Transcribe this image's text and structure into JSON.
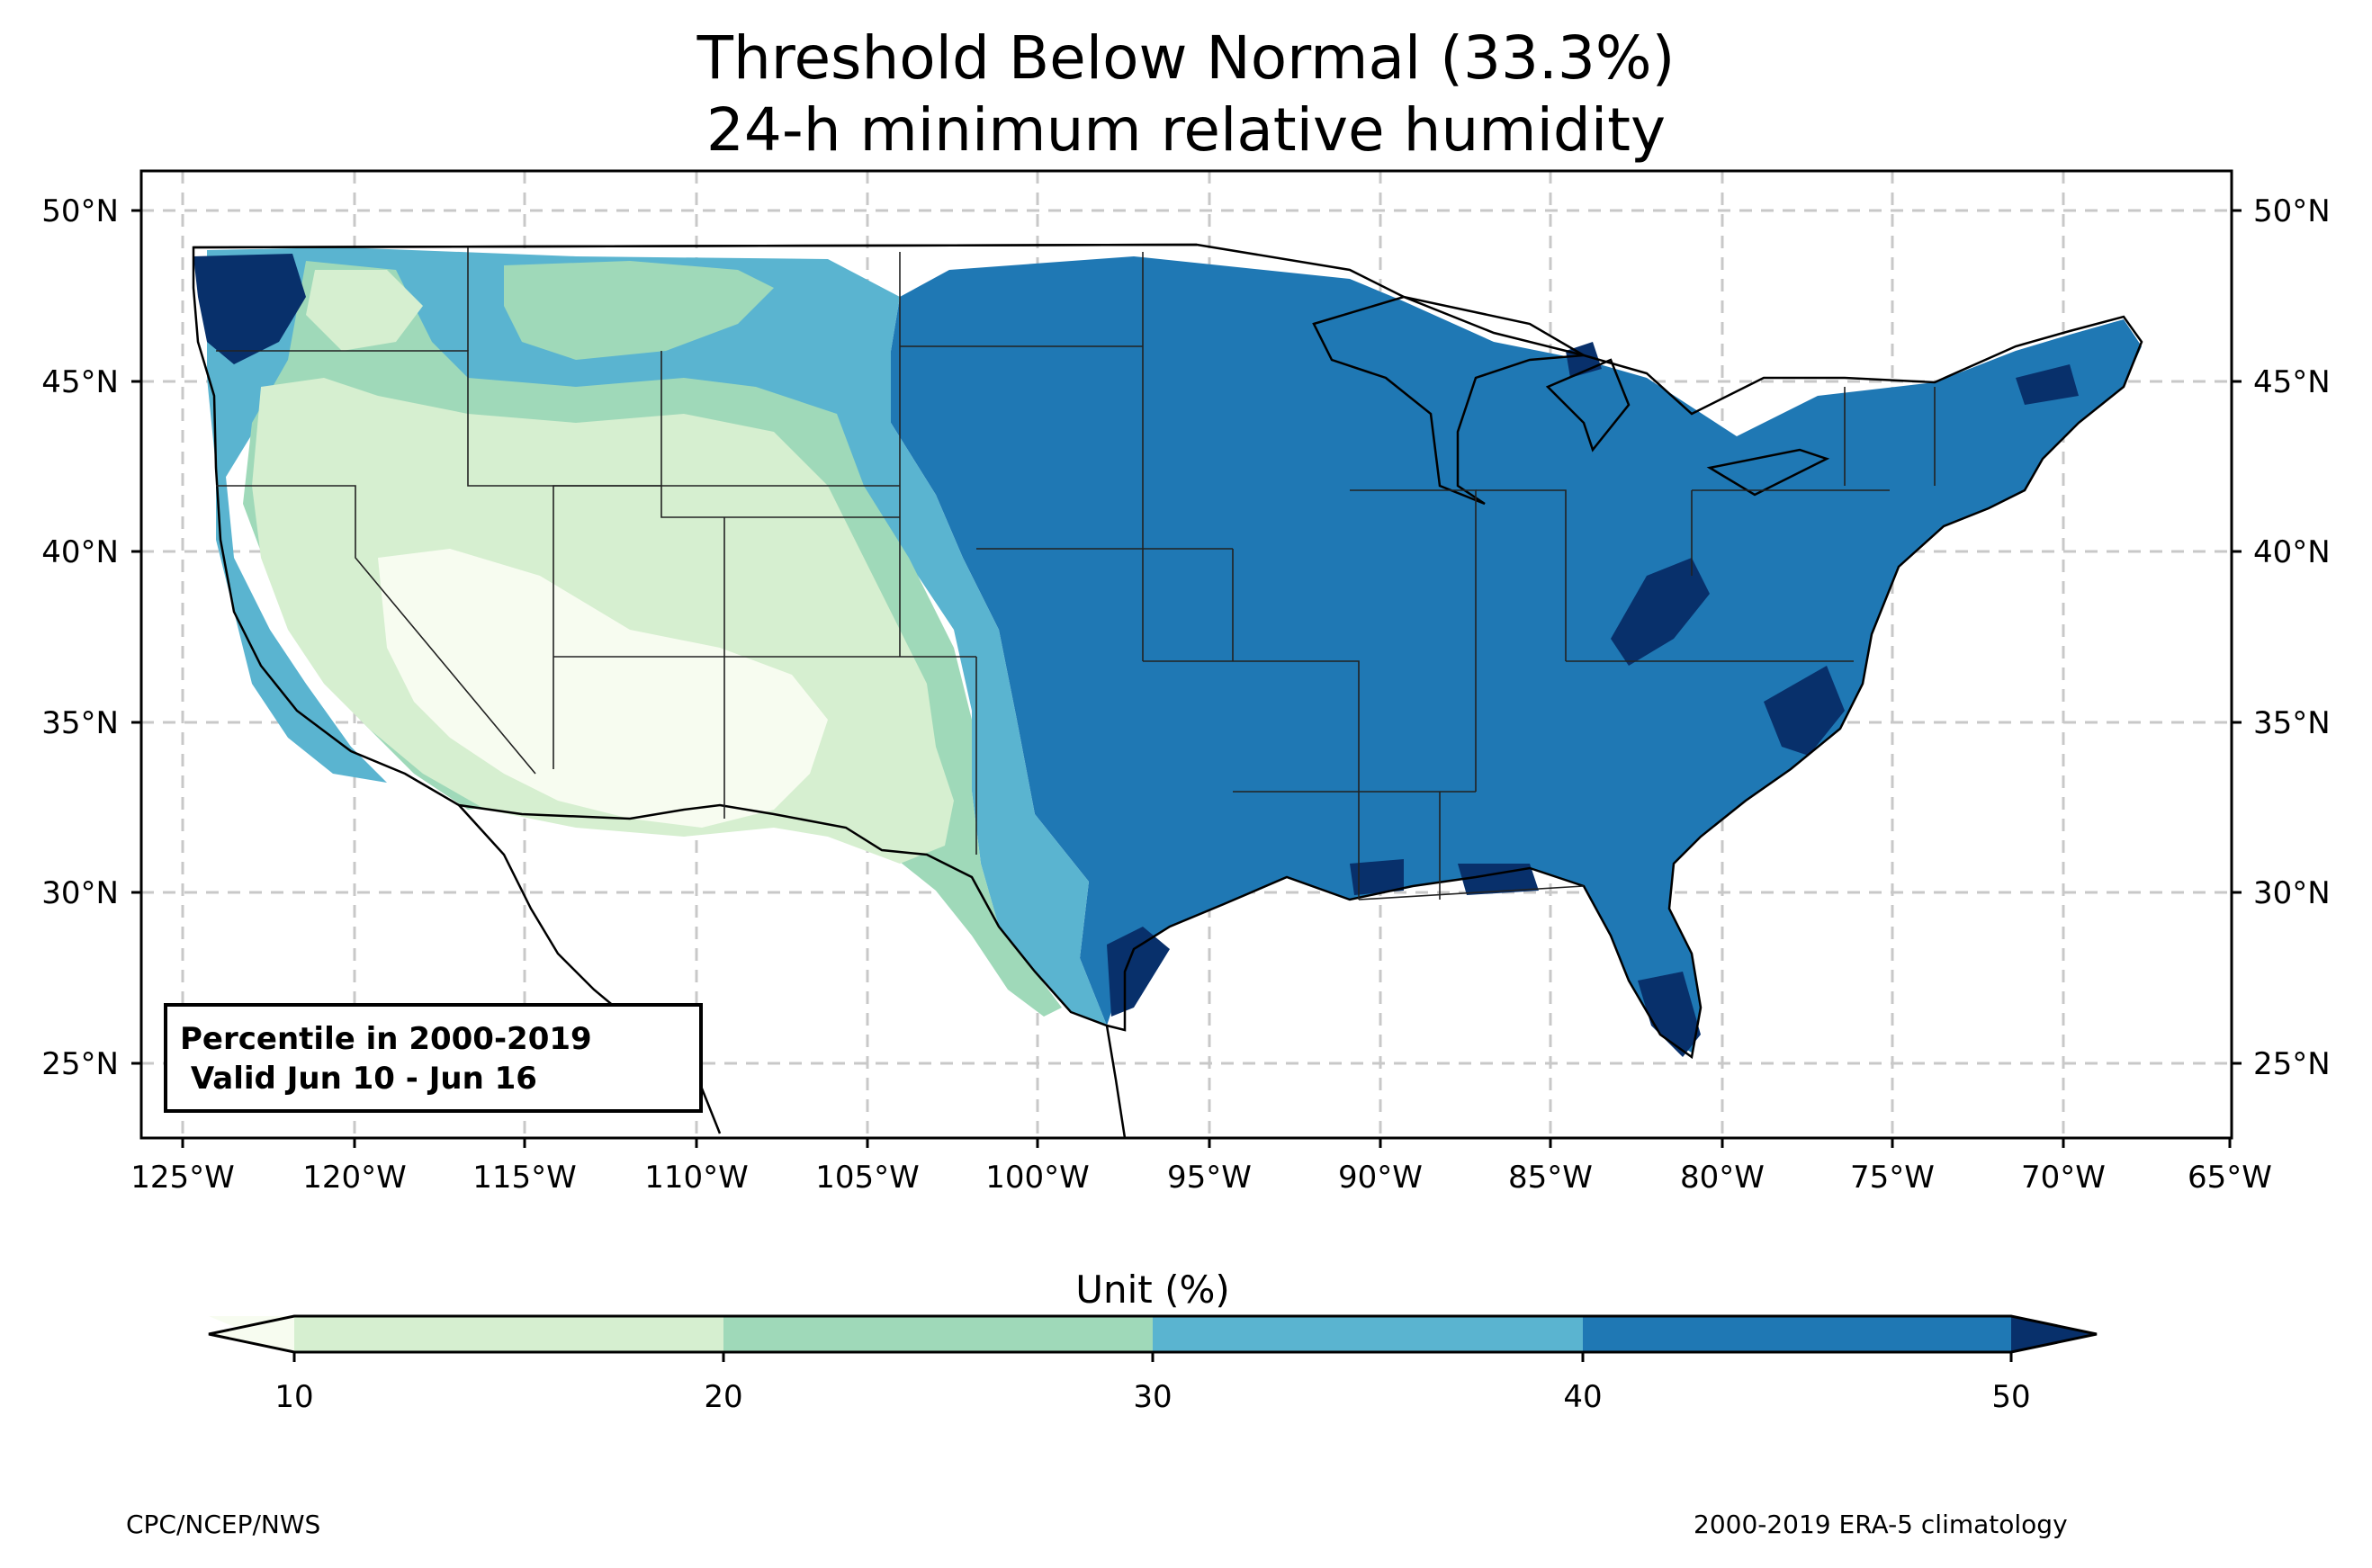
{
  "title": {
    "line1": "Threshold Below Normal (33.3%)",
    "line2": "24-h minimum relative humidity"
  },
  "map": {
    "lat_labels": [
      "50°N",
      "45°N",
      "40°N",
      "35°N",
      "30°N",
      "25°N"
    ],
    "lon_labels": [
      "125°W",
      "120°W",
      "115°W",
      "110°W",
      "105°W",
      "100°W",
      "95°W",
      "90°W",
      "85°W",
      "80°W",
      "75°W",
      "70°W",
      "65°W"
    ],
    "inset_box": {
      "line1": "Percentile in 2000-2019",
      "line2": " Valid Jun 10 - Jun 16"
    },
    "region_shading": [
      {
        "region": "Desert Southwest (AZ, S NV, SE CA)",
        "bin": "<10"
      },
      {
        "region": "Great Basin / Utah / New Mexico",
        "bin": "10-20"
      },
      {
        "region": "Wyoming / Colorado / W Texas",
        "bin": "20-30"
      },
      {
        "region": "Montana / Idaho / Dakotas west / central Plains",
        "bin": "30-40"
      },
      {
        "region": "Midwest / South / East / Northeast",
        "bin": "40-50"
      },
      {
        "region": "Coastal Washington / Louisiana coast / S Florida / Appalachians / NC coast",
        "bin": ">50"
      }
    ]
  },
  "colorbar": {
    "label": "Unit (%)",
    "ticks": [
      "10",
      "20",
      "30",
      "40",
      "50"
    ],
    "bins": [
      {
        "range": "<10",
        "color": "#f7fcf0"
      },
      {
        "range": "10-20",
        "color": "#d6efd0"
      },
      {
        "range": "20-30",
        "color": "#9fd9b9"
      },
      {
        "range": "30-40",
        "color": "#5ab4d0"
      },
      {
        "range": "40-50",
        "color": "#1f78b4"
      },
      {
        "range": ">50",
        "color": "#08306b"
      }
    ]
  },
  "footer": {
    "left": "CPC/NCEP/NWS",
    "right": "2000-2019 ERA-5 climatology"
  }
}
